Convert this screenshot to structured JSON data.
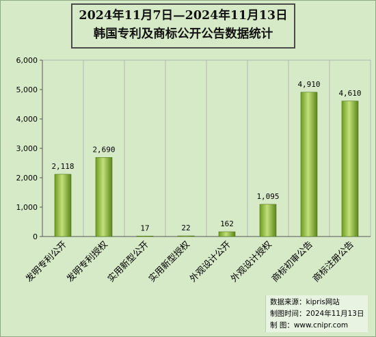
{
  "chart_data": {
    "type": "bar",
    "title": "2024年11月7日—2024年11月13日",
    "subtitle": "韩国专利及商标公开公告数据统计",
    "categories": [
      "发明专利公开",
      "发明专利授权",
      "实用新型公开",
      "实用新型授权",
      "外观设计公开",
      "外观设计授权",
      "商标初审公告",
      "商标注册公告"
    ],
    "values": [
      2118,
      2690,
      17,
      22,
      162,
      1095,
      4910,
      4610
    ],
    "value_labels": [
      "2,118",
      "2,690",
      "17",
      "22",
      "162",
      "1,095",
      "4,910",
      "4,610"
    ],
    "ylim": [
      0,
      6000
    ],
    "yticks": [
      0,
      1000,
      2000,
      3000,
      4000,
      5000,
      6000
    ],
    "ytick_labels": [
      "0",
      "1,000",
      "2,000",
      "3,000",
      "4,000",
      "5,000",
      "6,000"
    ],
    "grid": true,
    "bar_color_light": "#b7d86a",
    "bar_color_dark": "#5f8a1e",
    "xlabel": "",
    "ylabel": ""
  },
  "source": {
    "line1": "数据来源：kipris网站",
    "line2": "制图时间：2024年11月13日",
    "line3": "制    图：www.cnipr.com"
  }
}
